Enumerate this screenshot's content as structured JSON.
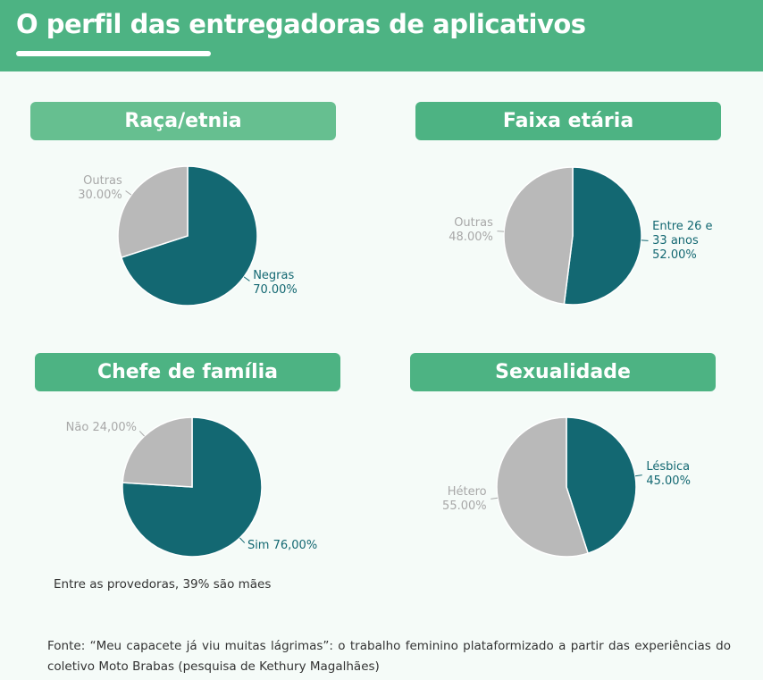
{
  "header": {
    "title": "O perfil das entregadoras de aplicativos"
  },
  "chart_data": [
    {
      "type": "pie",
      "title": "Raça/etnia",
      "categories": [
        "Negras",
        "Outras"
      ],
      "values": [
        70,
        30
      ],
      "value_labels": [
        "70.00%",
        "30.00%"
      ],
      "colors": [
        "#136872",
        "#b9b9b9"
      ],
      "header_color": "#66bf90"
    },
    {
      "type": "pie",
      "title": "Faixa etária",
      "categories": [
        "Entre 26 e 33 anos",
        "Outras"
      ],
      "values": [
        52,
        48
      ],
      "value_labels": [
        "52.00%",
        "48.00%"
      ],
      "colors": [
        "#136872",
        "#b9b9b9"
      ],
      "header_color": "#4db383"
    },
    {
      "type": "pie",
      "title": "Chefe de família",
      "categories": [
        "Sim",
        "Não"
      ],
      "values": [
        76,
        24
      ],
      "value_labels": [
        "76,00%",
        "24,00%"
      ],
      "colors": [
        "#136872",
        "#b9b9b9"
      ],
      "header_color": "#4db383",
      "label_inline": true,
      "note": "Entre as provedoras, 39% são mães"
    },
    {
      "type": "pie",
      "title": "Sexualidade",
      "categories": [
        "Lésbica",
        "Hétero"
      ],
      "values": [
        45,
        55
      ],
      "value_labels": [
        "45.00%",
        "55.00%"
      ],
      "colors": [
        "#136872",
        "#b9b9b9"
      ],
      "header_color": "#4db383"
    }
  ],
  "footer": {
    "source": "Fonte: “Meu capacete já viu muitas lágrimas”: o trabalho feminino plataformizado a partir das experiências do coletivo Moto Brabas (pesquisa de Kethury Magalhães)"
  }
}
